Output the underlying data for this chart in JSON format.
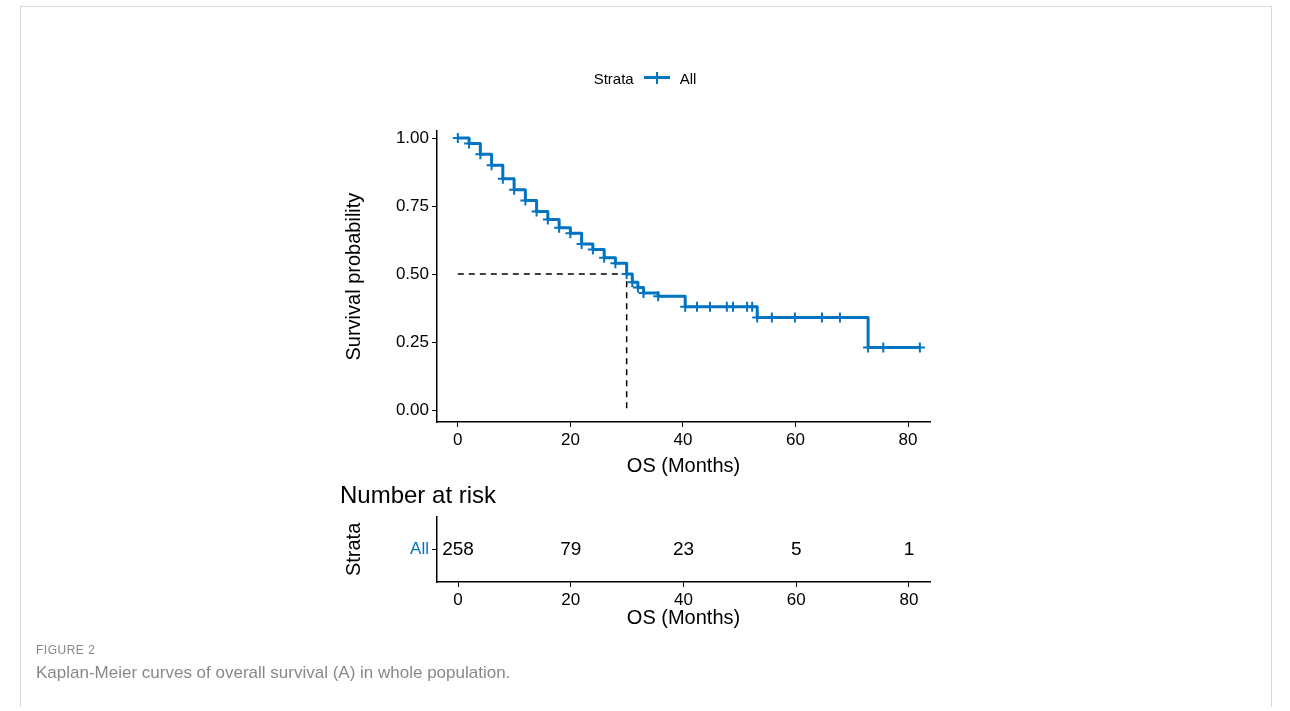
{
  "chart_data": [
    {
      "type": "step",
      "xlabel": "OS (Months)",
      "ylabel": "Survival probability",
      "legend": "top",
      "legend_title": "Strata",
      "marker": "cross",
      "grid": false,
      "xlim": [
        -3.7,
        83.9
      ],
      "xticks": [
        0,
        20,
        40,
        60,
        80
      ],
      "ylim": [
        -0.044,
        1.025
      ],
      "yticks": [
        {
          "value": 0,
          "label": "0.00"
        },
        {
          "value": 0.25,
          "label": "0.25"
        },
        {
          "value": 0.5,
          "label": "0.50"
        },
        {
          "value": 0.75,
          "label": "0.75"
        },
        {
          "value": 1,
          "label": "1.00"
        }
      ],
      "series": [
        {
          "name": "All",
          "color": "#0073c2",
          "x": [
            0,
            2,
            4,
            6,
            8,
            10,
            12,
            14,
            16,
            18,
            20,
            22,
            24,
            26,
            28,
            30,
            31,
            32,
            33,
            35.6,
            40.4,
            42.5,
            44.8,
            47.8,
            48.9,
            51.4,
            52.3,
            53.2,
            55.8,
            59.9,
            64.7,
            67.9,
            72.9,
            75.6,
            82.1
          ],
          "values": [
            1.0,
            0.98,
            0.94,
            0.9,
            0.85,
            0.81,
            0.77,
            0.73,
            0.7,
            0.67,
            0.65,
            0.61,
            0.59,
            0.56,
            0.54,
            0.5,
            0.47,
            0.45,
            0.43,
            0.418,
            0.38,
            0.38,
            0.38,
            0.38,
            0.38,
            0.38,
            0.38,
            0.34,
            0.34,
            0.34,
            0.34,
            0.34,
            0.23,
            0.23,
            0.23
          ]
        },
        {
          "type": "line",
          "color": "#000000",
          "line_style": "dashed",
          "marker": "none",
          "x": [
            0,
            30,
            30
          ],
          "values": [
            0.5,
            0.5,
            0
          ]
        }
      ],
      "annotations": [
        "FIGURE 2",
        "Kaplan-Meier curves of overall survival (A) in whole population."
      ]
    },
    {
      "type": "heatmap",
      "title": "Number at risk",
      "xlabel": "OS (Months)",
      "ylabel": "Strata",
      "categories": [
        "0",
        "20",
        "40",
        "60",
        "80"
      ],
      "y_categories": [
        "All"
      ],
      "color": "#0073c2",
      "cells": [
        [
          258,
          79,
          23,
          5,
          1
        ]
      ],
      "data_labels": true
    }
  ]
}
